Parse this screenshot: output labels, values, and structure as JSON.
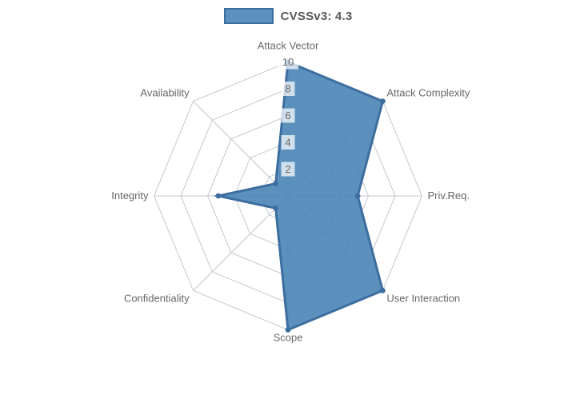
{
  "legend": {
    "label": "CVSSv3: 4.3",
    "position": "top"
  },
  "colors": {
    "series_fill": "rgba(70,130,180,0.88)",
    "series_line": "#3c6e9f",
    "point_fill": "#3c6e9f",
    "grid_line": "#c4c8cd",
    "tick_text": "#666666",
    "tick_backdrop": "rgba(255,255,255,0.72)",
    "axis_label_text": "#676767",
    "legend_text": "#585858"
  },
  "chart_data": {
    "type": "radar",
    "title": "",
    "categories": [
      "Attack Vector",
      "Attack Complexity",
      "Priv.Req.",
      "User Interaction",
      "Scope",
      "Confidentiality",
      "Integrity",
      "Availability"
    ],
    "series": [
      {
        "name": "CVSSv3: 4.3",
        "values": [
          10,
          10,
          5.2,
          10,
          10,
          1.3,
          5.2,
          1.3
        ]
      }
    ],
    "radial_ticks": [
      2,
      4,
      6,
      8,
      10
    ],
    "range": [
      0,
      10
    ],
    "start_axis": "top",
    "direction": "clockwise",
    "grid": true,
    "grid_shape": "polygon",
    "legend_position": "top"
  }
}
